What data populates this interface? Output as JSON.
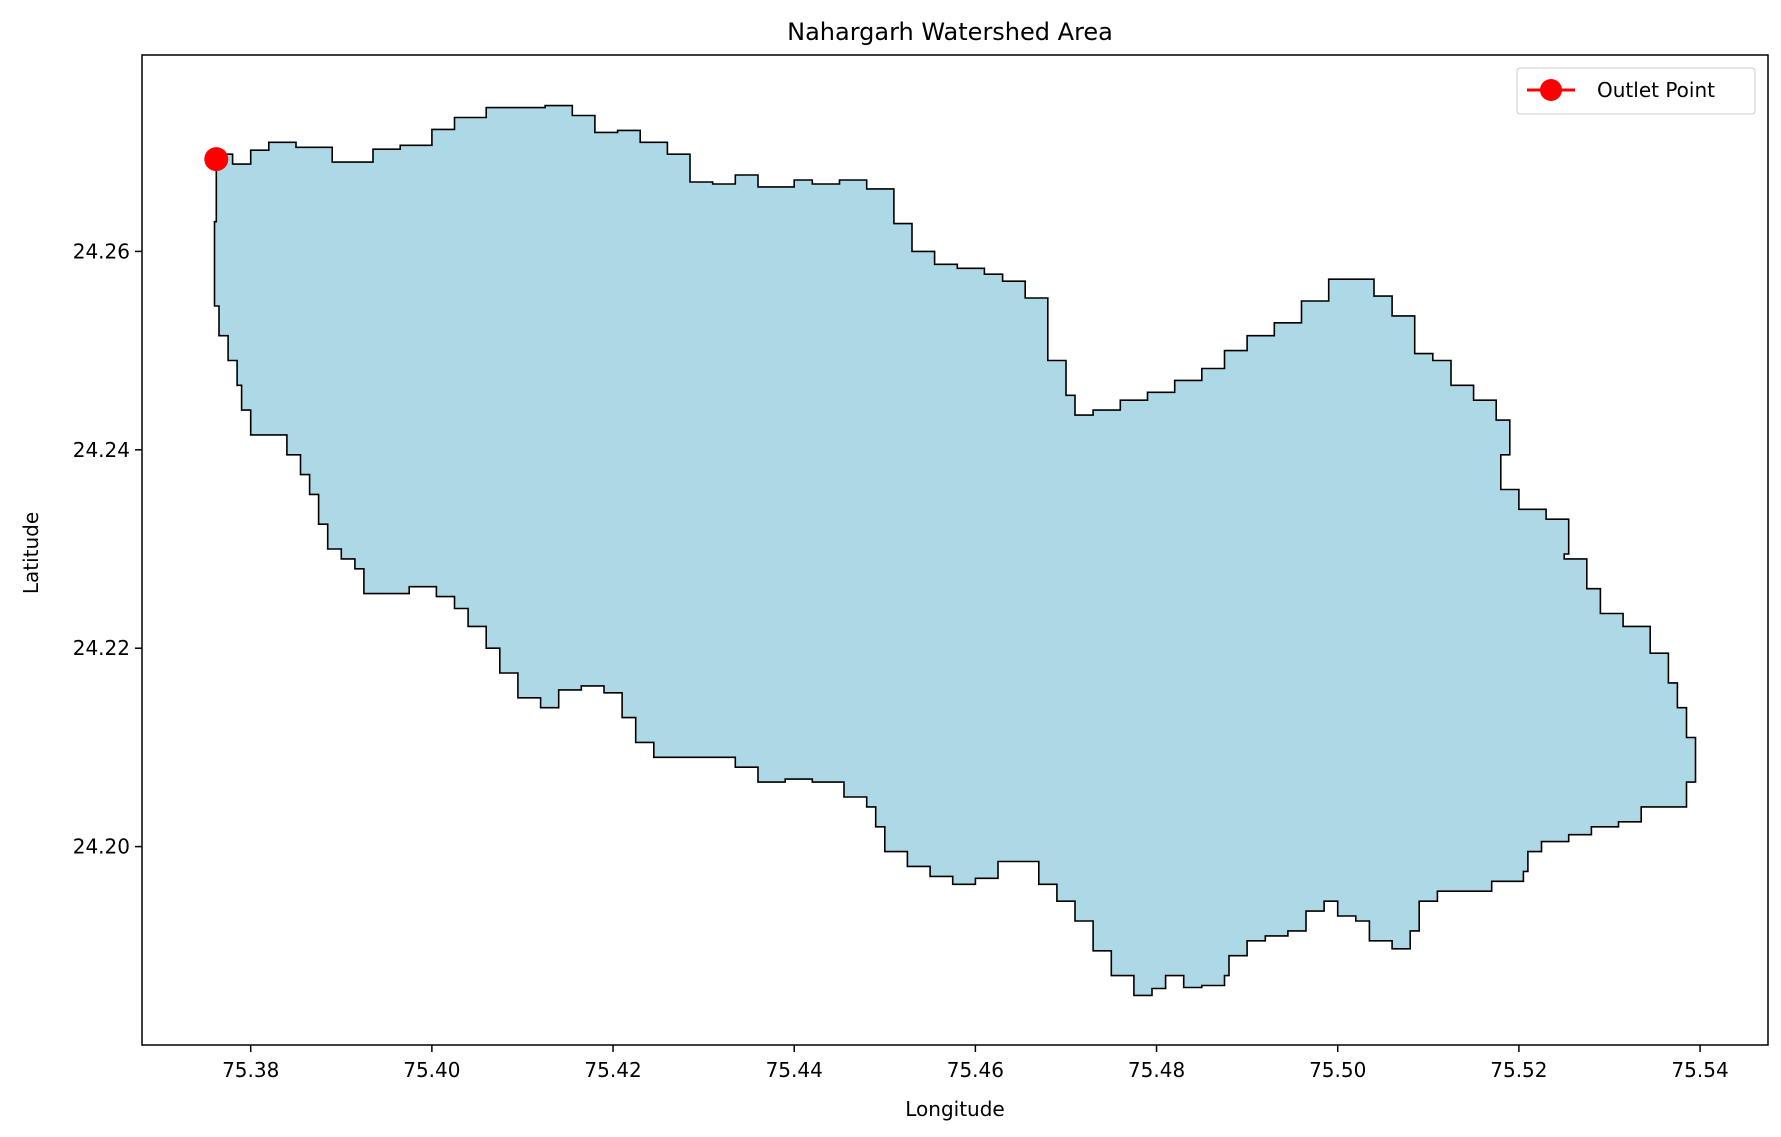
{
  "chart_data": {
    "type": "map",
    "title": "Nahargarh Watershed Area",
    "xlabel": "Longitude",
    "ylabel": "Latitude",
    "xlim": [
      75.368,
      75.5475
    ],
    "ylim": [
      24.18,
      24.2798
    ],
    "x_ticks": [
      "75.38",
      "75.40",
      "75.42",
      "75.44",
      "75.46",
      "75.48",
      "75.50",
      "75.52",
      "75.54"
    ],
    "x_tick_values": [
      75.38,
      75.4,
      75.42,
      75.44,
      75.46,
      75.48,
      75.5,
      75.52,
      75.54
    ],
    "y_ticks": [
      "24.20",
      "24.22",
      "24.24",
      "24.26"
    ],
    "y_tick_values": [
      24.2,
      24.22,
      24.24,
      24.26
    ],
    "watershed": {
      "fill": "#add8e6",
      "stroke": "#000000",
      "boundary": [
        [
          75.3762,
          24.2695
        ],
        [
          75.378,
          24.2698
        ],
        [
          75.38,
          24.2688
        ],
        [
          75.382,
          24.2702
        ],
        [
          75.385,
          24.271
        ],
        [
          75.389,
          24.2705
        ],
        [
          75.391,
          24.269
        ],
        [
          75.3935,
          24.269
        ],
        [
          75.3965,
          24.2703
        ],
        [
          75.4,
          24.2707
        ],
        [
          75.4025,
          24.2723
        ],
        [
          75.406,
          24.2735
        ],
        [
          75.409,
          24.2745
        ],
        [
          75.4125,
          24.2745
        ],
        [
          75.4155,
          24.2747
        ],
        [
          75.418,
          24.2737
        ],
        [
          75.4205,
          24.272
        ],
        [
          75.423,
          24.2722
        ],
        [
          75.426,
          24.271
        ],
        [
          75.4285,
          24.2698
        ],
        [
          75.431,
          24.267
        ],
        [
          75.4335,
          24.2668
        ],
        [
          75.436,
          24.2677
        ],
        [
          75.438,
          24.2665
        ],
        [
          75.44,
          24.2665
        ],
        [
          75.442,
          24.2672
        ],
        [
          75.445,
          24.2668
        ],
        [
          75.448,
          24.2672
        ],
        [
          75.451,
          24.2663
        ],
        [
          75.453,
          24.2628
        ],
        [
          75.4555,
          24.26
        ],
        [
          75.458,
          24.2587
        ],
        [
          75.461,
          24.2583
        ],
        [
          75.463,
          24.2577
        ],
        [
          75.4655,
          24.257
        ],
        [
          75.468,
          24.2553
        ],
        [
          75.47,
          24.249
        ],
        [
          75.471,
          24.2455
        ],
        [
          75.473,
          24.2435
        ],
        [
          75.476,
          24.244
        ],
        [
          75.479,
          24.245
        ],
        [
          75.482,
          24.2458
        ],
        [
          75.485,
          24.247
        ],
        [
          75.4875,
          24.2482
        ],
        [
          75.49,
          24.25
        ],
        [
          75.493,
          24.2515
        ],
        [
          75.496,
          24.2528
        ],
        [
          75.499,
          24.255
        ],
        [
          75.5015,
          24.2572
        ],
        [
          75.504,
          24.2572
        ],
        [
          75.506,
          24.2555
        ],
        [
          75.5085,
          24.2535
        ],
        [
          75.5105,
          24.2497
        ],
        [
          75.5125,
          24.249
        ],
        [
          75.515,
          24.2465
        ],
        [
          75.5175,
          24.245
        ],
        [
          75.519,
          24.243
        ],
        [
          75.518,
          24.2395
        ],
        [
          75.52,
          24.236
        ],
        [
          75.523,
          24.234
        ],
        [
          75.5255,
          24.233
        ],
        [
          75.525,
          24.2295
        ],
        [
          75.5275,
          24.229
        ],
        [
          75.529,
          24.226
        ],
        [
          75.5315,
          24.2235
        ],
        [
          75.5345,
          24.2222
        ],
        [
          75.5365,
          24.2195
        ],
        [
          75.5375,
          24.2165
        ],
        [
          75.5385,
          24.214
        ],
        [
          75.5395,
          24.211
        ],
        [
          75.5395,
          24.2085
        ],
        [
          75.5385,
          24.2065
        ],
        [
          75.536,
          24.204
        ],
        [
          75.5335,
          24.204
        ],
        [
          75.531,
          24.2025
        ],
        [
          75.528,
          24.202
        ],
        [
          75.5255,
          24.2012
        ],
        [
          75.5225,
          24.2005
        ],
        [
          75.521,
          24.1995
        ],
        [
          75.5205,
          24.1975
        ],
        [
          75.517,
          24.1965
        ],
        [
          75.514,
          24.1955
        ],
        [
          75.511,
          24.1955
        ],
        [
          75.509,
          24.1945
        ],
        [
          75.508,
          24.1915
        ],
        [
          75.506,
          24.1897
        ],
        [
          75.5035,
          24.1905
        ],
        [
          75.502,
          24.1925
        ],
        [
          75.5,
          24.193
        ],
        [
          75.4985,
          24.1945
        ],
        [
          75.4965,
          24.1935
        ],
        [
          75.4945,
          24.1915
        ],
        [
          75.492,
          24.191
        ],
        [
          75.49,
          24.1905
        ],
        [
          75.488,
          24.189
        ],
        [
          75.4875,
          24.187
        ],
        [
          75.485,
          24.186
        ],
        [
          75.483,
          24.1858
        ],
        [
          75.481,
          24.187
        ],
        [
          75.4795,
          24.1857
        ],
        [
          75.4775,
          24.185
        ],
        [
          75.475,
          24.187
        ],
        [
          75.473,
          24.1895
        ],
        [
          75.471,
          24.1925
        ],
        [
          75.469,
          24.1945
        ],
        [
          75.467,
          24.1962
        ],
        [
          75.4655,
          24.1985
        ],
        [
          75.4625,
          24.1985
        ],
        [
          75.46,
          24.1968
        ],
        [
          75.4575,
          24.1962
        ],
        [
          75.455,
          24.197
        ],
        [
          75.4525,
          24.198
        ],
        [
          75.45,
          24.1995
        ],
        [
          75.449,
          24.202
        ],
        [
          75.448,
          24.204
        ],
        [
          75.4455,
          24.205
        ],
        [
          75.442,
          24.2065
        ],
        [
          75.439,
          24.2068
        ],
        [
          75.436,
          24.2065
        ],
        [
          75.4335,
          24.208
        ],
        [
          75.431,
          24.209
        ],
        [
          75.428,
          24.209
        ],
        [
          75.4245,
          24.209
        ],
        [
          75.4225,
          24.2105
        ],
        [
          75.421,
          24.213
        ],
        [
          75.419,
          24.2155
        ],
        [
          75.4165,
          24.2162
        ],
        [
          75.414,
          24.2158
        ],
        [
          75.412,
          24.214
        ],
        [
          75.4095,
          24.215
        ],
        [
          75.4075,
          24.2175
        ],
        [
          75.406,
          24.22
        ],
        [
          75.404,
          24.2222
        ],
        [
          75.4025,
          24.224
        ],
        [
          75.4005,
          24.2252
        ],
        [
          75.3975,
          24.2262
        ],
        [
          75.395,
          24.2255
        ],
        [
          75.3925,
          24.2255
        ],
        [
          75.3915,
          24.228
        ],
        [
          75.39,
          24.229
        ],
        [
          75.3885,
          24.23
        ],
        [
          75.3875,
          24.2325
        ],
        [
          75.3865,
          24.2355
        ],
        [
          75.3855,
          24.2375
        ],
        [
          75.384,
          24.2395
        ],
        [
          75.383,
          24.2415
        ],
        [
          75.38,
          24.2415
        ],
        [
          75.379,
          24.244
        ],
        [
          75.3785,
          24.2465
        ],
        [
          75.3775,
          24.249
        ],
        [
          75.3765,
          24.2515
        ],
        [
          75.376,
          24.2545
        ],
        [
          75.376,
          24.258
        ],
        [
          75.3762,
          24.263
        ],
        [
          75.3762,
          24.2695
        ]
      ]
    },
    "outlet": {
      "lon": 75.3762,
      "lat": 24.2693,
      "color": "#ff0000",
      "label": "Outlet Point"
    },
    "legend_position": "upper right"
  }
}
